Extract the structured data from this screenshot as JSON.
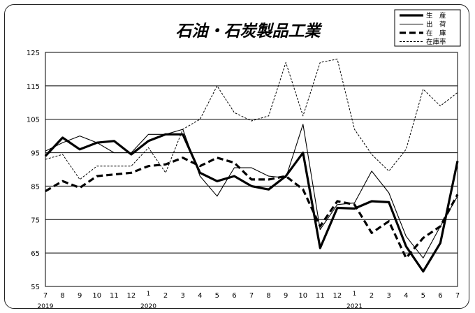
{
  "chart_data": {
    "type": "line",
    "title": "石油・石炭製品工業",
    "x": [
      "7",
      "8",
      "9",
      "10",
      "11",
      "12",
      "1",
      "2",
      "3",
      "4",
      "5",
      "6",
      "7",
      "8",
      "9",
      "10",
      "11",
      "12",
      "1",
      "2",
      "3",
      "4",
      "5",
      "6",
      "7"
    ],
    "year_labels": [
      {
        "text": "2019",
        "index": 0
      },
      {
        "text": "2020",
        "index": 6
      },
      {
        "text": "2021",
        "index": 18
      }
    ],
    "y_ticks": [
      55,
      65,
      75,
      85,
      95,
      105,
      115,
      125
    ],
    "ylim": [
      55,
      125
    ],
    "grid": true,
    "legend_position": "top-right",
    "series": [
      {
        "name": "生　産",
        "style": "thick-solid",
        "values": [
          94,
          99.5,
          96,
          98,
          98.5,
          94.5,
          98.5,
          100.5,
          100.5,
          89,
          86.5,
          88,
          85,
          84,
          88,
          95,
          66.5,
          78.5,
          78.3,
          80.5,
          80.2,
          67,
          59.5,
          68,
          92.5
        ]
      },
      {
        "name": "出　荷",
        "style": "thin-solid",
        "values": [
          95.5,
          98,
          100,
          98,
          95,
          95,
          100.5,
          100.5,
          102,
          88,
          82,
          90.5,
          90.5,
          88,
          87.5,
          103.5,
          72,
          79.5,
          80,
          89.5,
          83,
          70,
          63.5,
          73,
          82
        ]
      },
      {
        "name": "在　庫",
        "style": "thick-dashed",
        "values": [
          83.5,
          86.5,
          84.5,
          88,
          88.5,
          89,
          91,
          91.5,
          93.5,
          91,
          93.5,
          92,
          87,
          87,
          88,
          84,
          73,
          80.5,
          79.5,
          71,
          74.5,
          63.5,
          69.5,
          73,
          82.5
        ]
      },
      {
        "name": "在庫率",
        "style": "thin-dotted",
        "values": [
          93,
          94.5,
          87,
          91,
          91,
          91,
          96.5,
          89,
          102,
          105,
          115,
          107,
          104.5,
          106,
          122,
          106,
          122,
          123,
          102,
          94.5,
          89.5,
          96,
          114,
          109,
          113
        ]
      }
    ]
  }
}
